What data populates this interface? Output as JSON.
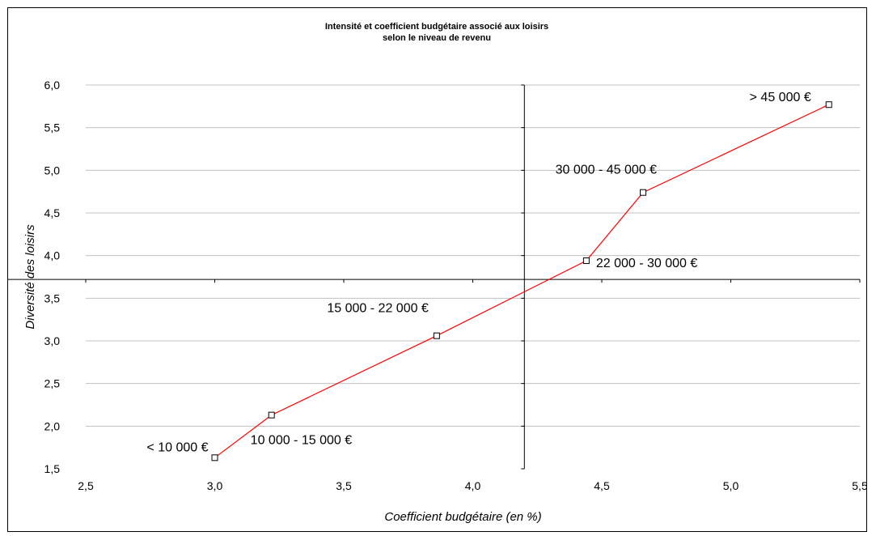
{
  "chart_data": {
    "type": "line",
    "title": [
      "Intensité et coefficient budgétaire associé aux loisirs",
      "selon le niveau de revenu"
    ],
    "xlabel": "Coefficient budgétaire (en %)",
    "ylabel": "Diversité des loisirs",
    "xlim": [
      2.5,
      5.5
    ],
    "ylim": [
      1.5,
      6.0
    ],
    "xticks": [
      "2,5",
      "3,0",
      "3,5",
      "4,0",
      "4,5",
      "5,0",
      "5,5"
    ],
    "yticks": [
      "1,5",
      "2,0",
      "2,5",
      "3,0",
      "3,5",
      "4,0",
      "4,5",
      "5,0",
      "5,5",
      "6,0"
    ],
    "grid": "horizontal",
    "crosshair": {
      "x": 4.2,
      "y": 3.72
    },
    "series": [
      {
        "color": "#ff0000",
        "points": [
          {
            "x": 3.0,
            "y": 1.63,
            "label": "< 10 000 €"
          },
          {
            "x": 3.22,
            "y": 2.13,
            "label": "10 000 - 15 000 €"
          },
          {
            "x": 3.86,
            "y": 3.06,
            "label": "15 000 - 22 000 €"
          },
          {
            "x": 4.44,
            "y": 3.94,
            "label": "22 000 - 30 000 €"
          },
          {
            "x": 4.66,
            "y": 4.74,
            "label": "30 000 - 45 000 €"
          },
          {
            "x": 5.38,
            "y": 5.77,
            "label": "> 45 000 €"
          }
        ]
      }
    ]
  }
}
